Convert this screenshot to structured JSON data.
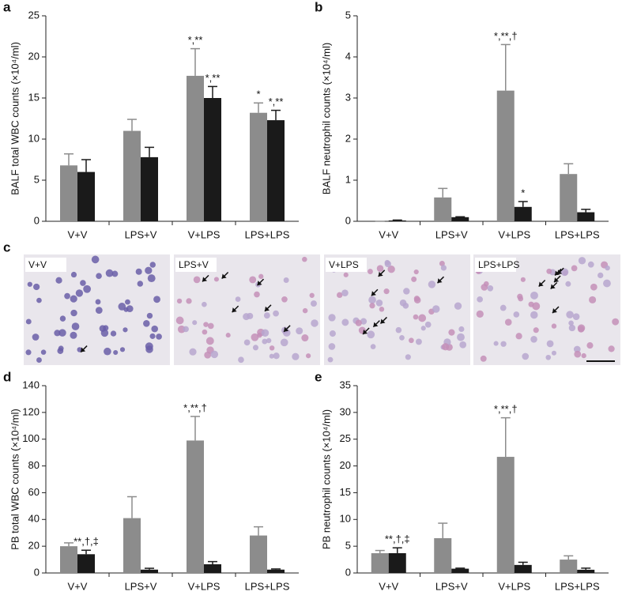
{
  "chart_data": [
    {
      "type": "bar",
      "panel_label": "a",
      "ylabel": "BALF total WBC counts (×10⁴/ml)",
      "categories": [
        "V+V",
        "LPS+V",
        "V+LPS",
        "LPS+LPS"
      ],
      "ylim": [
        0,
        25
      ],
      "yticks": [
        0,
        5,
        10,
        15,
        20,
        25
      ],
      "series": [
        {
          "color": "#8c8c8c",
          "values": [
            6.8,
            11.0,
            17.7,
            13.2
          ],
          "errors": [
            1.4,
            1.4,
            3.3,
            1.2
          ],
          "annotations": [
            null,
            null,
            "*,**",
            "*"
          ]
        },
        {
          "color": "#1a1a1a",
          "values": [
            6.0,
            7.8,
            15.0,
            12.3
          ],
          "errors": [
            1.5,
            1.2,
            1.4,
            1.2
          ],
          "annotations": [
            null,
            null,
            "*,**",
            "*,**"
          ]
        }
      ]
    },
    {
      "type": "bar",
      "panel_label": "b",
      "ylabel": "BALF neutrophil counts (×10⁴/ml)",
      "categories": [
        "V+V",
        "LPS+V",
        "V+LPS",
        "LPS+LPS"
      ],
      "ylim": [
        0,
        5
      ],
      "yticks": [
        0,
        1,
        2,
        3,
        4,
        5
      ],
      "series": [
        {
          "color": "#8c8c8c",
          "values": [
            0,
            0.58,
            3.18,
            1.15
          ],
          "errors": [
            0,
            0.22,
            1.12,
            0.25
          ],
          "annotations": [
            null,
            null,
            "*,**,†",
            null
          ]
        },
        {
          "color": "#1a1a1a",
          "values": [
            0.02,
            0.1,
            0.35,
            0.22
          ],
          "errors": [
            0.01,
            0.01,
            0.13,
            0.07
          ],
          "annotations": [
            null,
            null,
            "*",
            null
          ]
        }
      ]
    },
    {
      "type": "bar",
      "panel_label": "d",
      "ylabel": "PB total WBC counts (×10⁴/ml)",
      "categories": [
        "V+V",
        "LPS+V",
        "V+LPS",
        "LPS+LPS"
      ],
      "ylim": [
        0,
        140
      ],
      "yticks": [
        0,
        20,
        40,
        60,
        80,
        100,
        120,
        140
      ],
      "series": [
        {
          "color": "#8c8c8c",
          "values": [
            20,
            41,
            99,
            28
          ],
          "errors": [
            2.5,
            16,
            18,
            6.5
          ],
          "annotations": [
            null,
            null,
            "*,**,†",
            null
          ]
        },
        {
          "color": "#1a1a1a",
          "values": [
            14,
            2.5,
            6.5,
            2.5
          ],
          "errors": [
            3,
            1,
            2,
            0.5
          ],
          "annotations": [
            "**,†,‡",
            null,
            null,
            null
          ]
        }
      ]
    },
    {
      "type": "bar",
      "panel_label": "e",
      "ylabel": "PB neutrophil counts (×10⁴/ml)",
      "categories": [
        "V+V",
        "LPS+V",
        "V+LPS",
        "LPS+LPS"
      ],
      "ylim": [
        0,
        35
      ],
      "yticks": [
        0,
        5,
        10,
        15,
        20,
        25,
        30,
        35
      ],
      "series": [
        {
          "color": "#8c8c8c",
          "values": [
            3.7,
            6.5,
            21.7,
            2.5
          ],
          "errors": [
            0.5,
            2.8,
            7.3,
            0.7
          ],
          "annotations": [
            null,
            null,
            "*,**,†",
            null
          ]
        },
        {
          "color": "#1a1a1a",
          "values": [
            3.7,
            0.8,
            1.5,
            0.6
          ],
          "errors": [
            1.0,
            0.1,
            0.5,
            0.3
          ],
          "annotations": [
            "**,†,‡",
            null,
            null,
            null
          ]
        }
      ]
    }
  ],
  "micrographs": {
    "panel_label": "c",
    "labels": [
      "V+V",
      "LPS+V",
      "V+LPS",
      "LPS+LPS"
    ]
  }
}
